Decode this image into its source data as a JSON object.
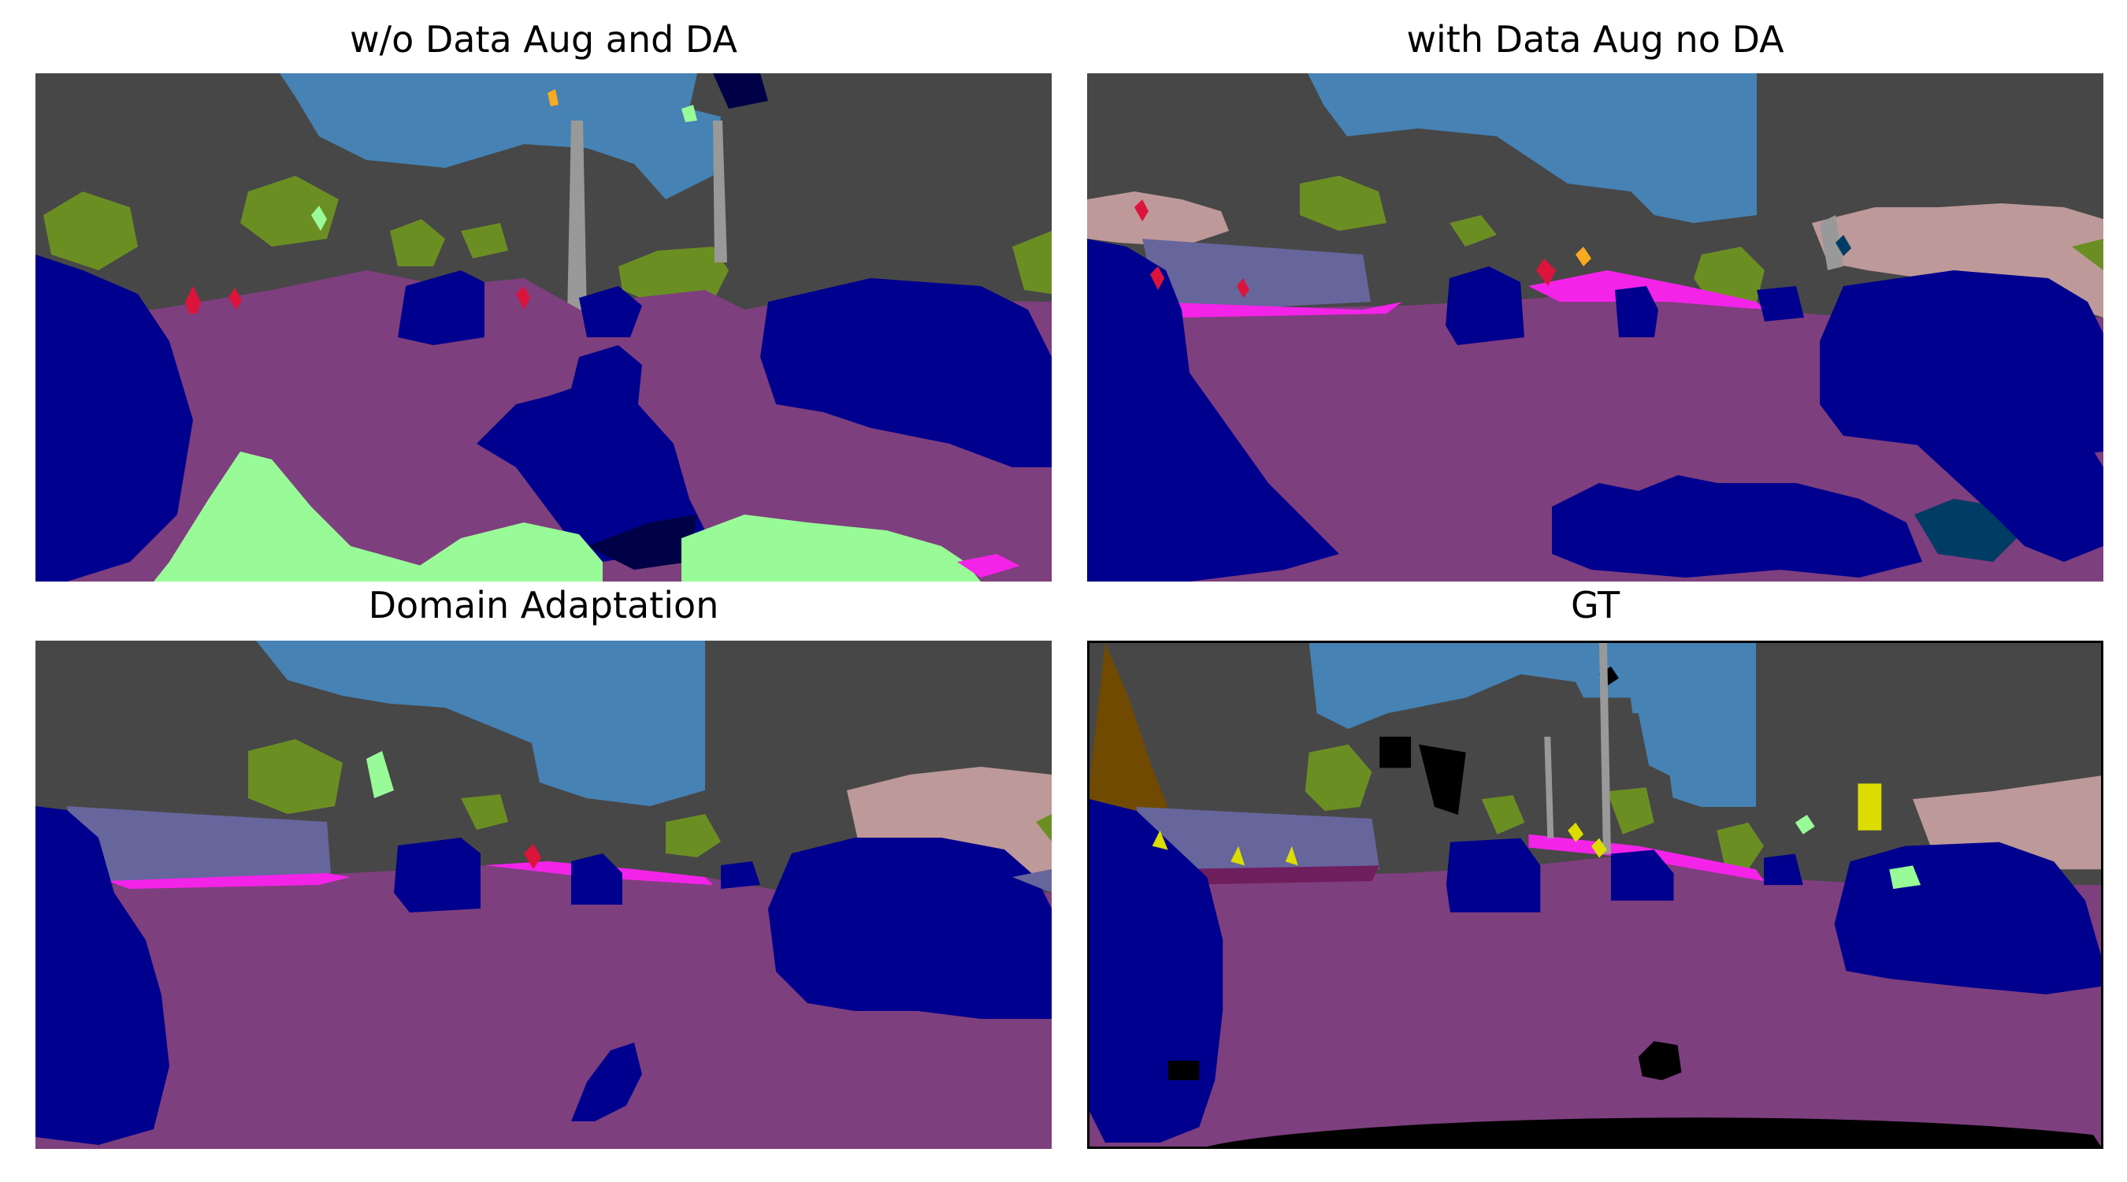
{
  "figure": {
    "panels": [
      {
        "title": "w/o Data Aug and DA"
      },
      {
        "title": "with Data Aug no DA"
      },
      {
        "title": "Domain Adaptation"
      },
      {
        "title": "GT"
      }
    ]
  },
  "segmentation_palette": {
    "building": "#474747",
    "sky": "#4682B4",
    "vegetation": "#6B8E23",
    "road": "#7E3F7E",
    "car": "#00008E",
    "sidewalk": "#F423E8",
    "wall": "#66669C",
    "fence": "#BE9999",
    "pole": "#999999",
    "person": "#DC143C",
    "terrain": "#98FB98",
    "truck": "#000046",
    "traffic_sign": "#DCDC00",
    "traffic_light": "#FAAA1E",
    "dynamic": "#6F4A00",
    "static": "#000000",
    "bus": "#003C64"
  }
}
